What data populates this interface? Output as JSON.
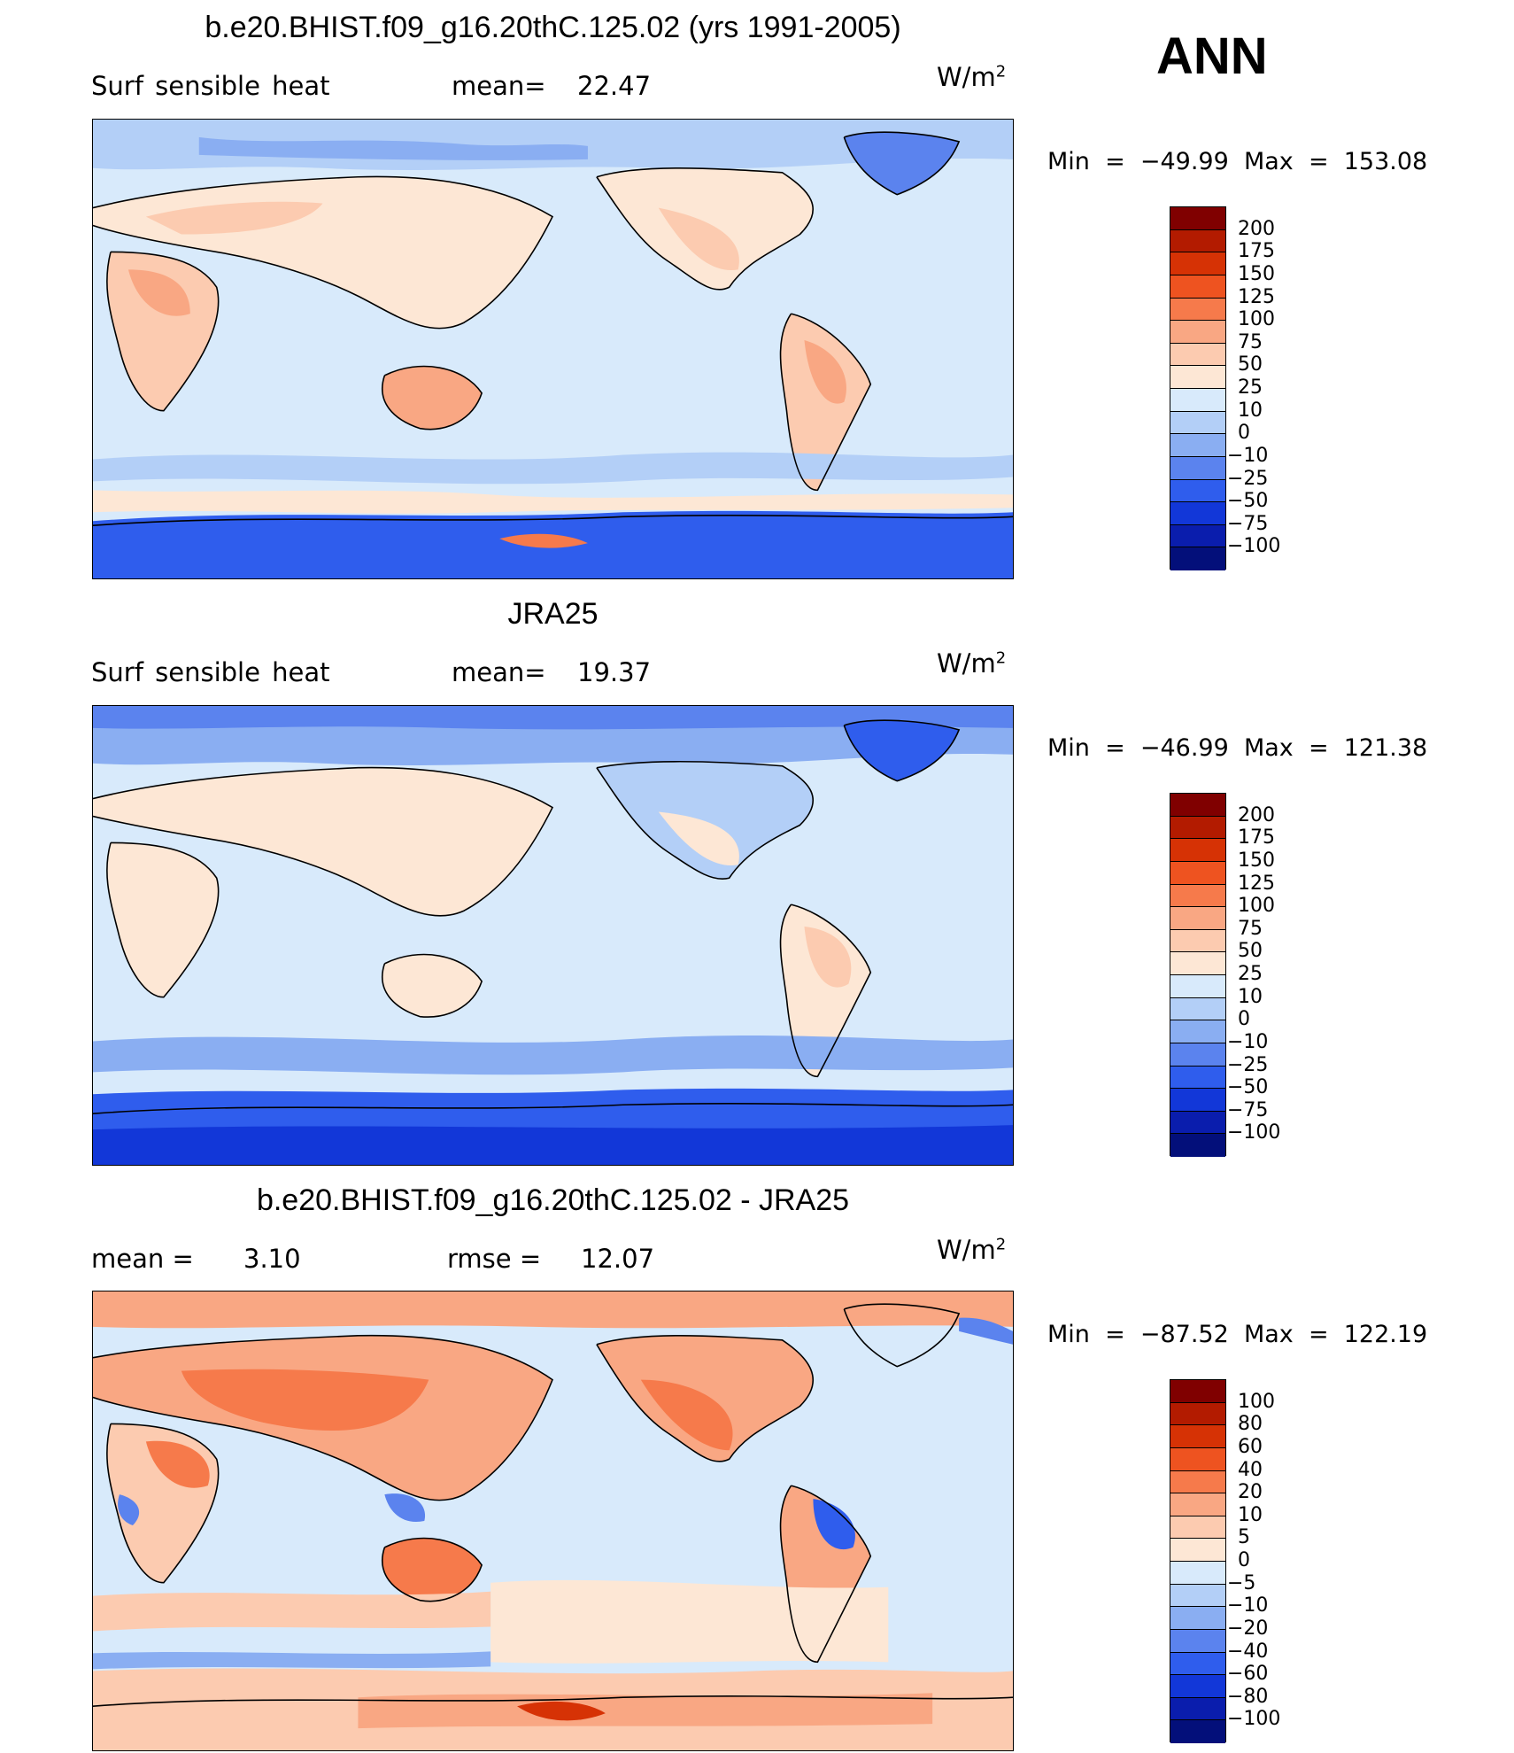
{
  "season": "ANN",
  "units": "W/m",
  "units_exp": "2",
  "panels": [
    {
      "title": "b.e20.BHIST.f09_g16.20thC.125.02 (yrs 1991-2005)",
      "var_label": "Surf sensible heat",
      "mean_label": "mean=",
      "mean_value": "22.47",
      "min_label": "Min",
      "min_value": "−49.99",
      "max_label": "Max",
      "max_value": "153.08",
      "levels": [
        "200",
        "175",
        "150",
        "125",
        "100",
        "75",
        "50",
        "25",
        "10",
        "0",
        "−10",
        "−25",
        "−50",
        "−75",
        "−100"
      ],
      "colors": [
        "#800000",
        "#b31b00",
        "#d63205",
        "#ee5320",
        "#f67a4b",
        "#f9a783",
        "#fccbb0",
        "#fde7d5",
        "#d8eafb",
        "#b3cff7",
        "#8aaef2",
        "#5b83ee",
        "#2f5ded",
        "#1237d8",
        "#0a1dad",
        "#030f7a"
      ]
    },
    {
      "title": "JRA25",
      "var_label": "Surf sensible heat",
      "mean_label": "mean=",
      "mean_value": "19.37",
      "min_label": "Min",
      "min_value": "−46.99",
      "max_label": "Max",
      "max_value": "121.38",
      "levels": [
        "200",
        "175",
        "150",
        "125",
        "100",
        "75",
        "50",
        "25",
        "10",
        "0",
        "−10",
        "−25",
        "−50",
        "−75",
        "−100"
      ],
      "colors": [
        "#800000",
        "#b31b00",
        "#d63205",
        "#ee5320",
        "#f67a4b",
        "#f9a783",
        "#fccbb0",
        "#fde7d5",
        "#d8eafb",
        "#b3cff7",
        "#8aaef2",
        "#5b83ee",
        "#2f5ded",
        "#1237d8",
        "#0a1dad",
        "#030f7a"
      ]
    },
    {
      "title": "b.e20.BHIST.f09_g16.20thC.125.02 - JRA25",
      "var_label": "mean =",
      "mean_label": "",
      "mean_value": "3.10",
      "rmse_label": "rmse =",
      "rmse_value": "12.07",
      "min_label": "Min",
      "min_value": "−87.52",
      "max_label": "Max",
      "max_value": "122.19",
      "levels": [
        "100",
        "80",
        "60",
        "40",
        "20",
        "10",
        "5",
        "0",
        "−5",
        "−10",
        "−20",
        "−40",
        "−60",
        "−80",
        "−100"
      ],
      "colors": [
        "#800000",
        "#b31b00",
        "#d63205",
        "#ee5320",
        "#f67a4b",
        "#f9a783",
        "#fccbb0",
        "#fde7d5",
        "#d8eafb",
        "#b3cff7",
        "#8aaef2",
        "#5b83ee",
        "#2f5ded",
        "#1237d8",
        "#0a1dad",
        "#030f7a"
      ]
    }
  ]
}
